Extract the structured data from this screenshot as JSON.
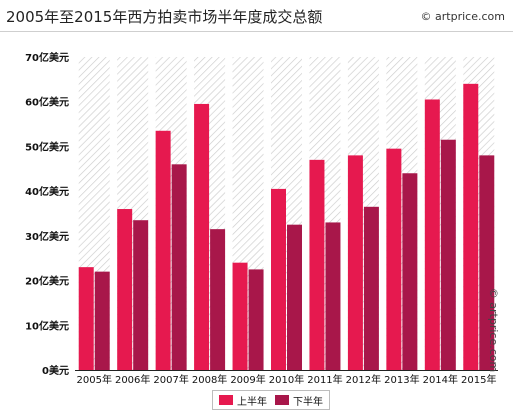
{
  "header": {
    "title": "2005年至2015年西方拍卖市场半年度成交总额",
    "credit": "© artprice.com"
  },
  "watermark": "© artprice.com",
  "colors": {
    "h1": "#e6194f",
    "h2": "#a8174a"
  },
  "chart_data": {
    "type": "bar",
    "title": "2005年至2015年西方拍卖市场半年度成交总额",
    "categories": [
      "2005年",
      "2006年",
      "2007年",
      "2008年",
      "2009年",
      "2010年",
      "2011年",
      "2012年",
      "2013年",
      "2014年",
      "2015年"
    ],
    "series": [
      {
        "name": "上半年",
        "values": [
          23,
          36,
          53.5,
          59.5,
          24,
          40.5,
          47,
          48,
          49.5,
          60.5,
          64
        ]
      },
      {
        "name": "下半年",
        "values": [
          22,
          33.5,
          46,
          31.5,
          22.5,
          32.5,
          33,
          36.5,
          44,
          51.5,
          48
        ]
      }
    ],
    "ylim": [
      0,
      70
    ],
    "yticks": [
      "0美元",
      "10亿美元",
      "20亿美元",
      "30亿美元",
      "40亿美元",
      "50亿美元",
      "60亿美元",
      "70亿美元"
    ],
    "ytick_values": [
      0,
      10,
      20,
      30,
      40,
      50,
      60,
      70
    ],
    "grid": false,
    "legend_position": "bottom"
  }
}
